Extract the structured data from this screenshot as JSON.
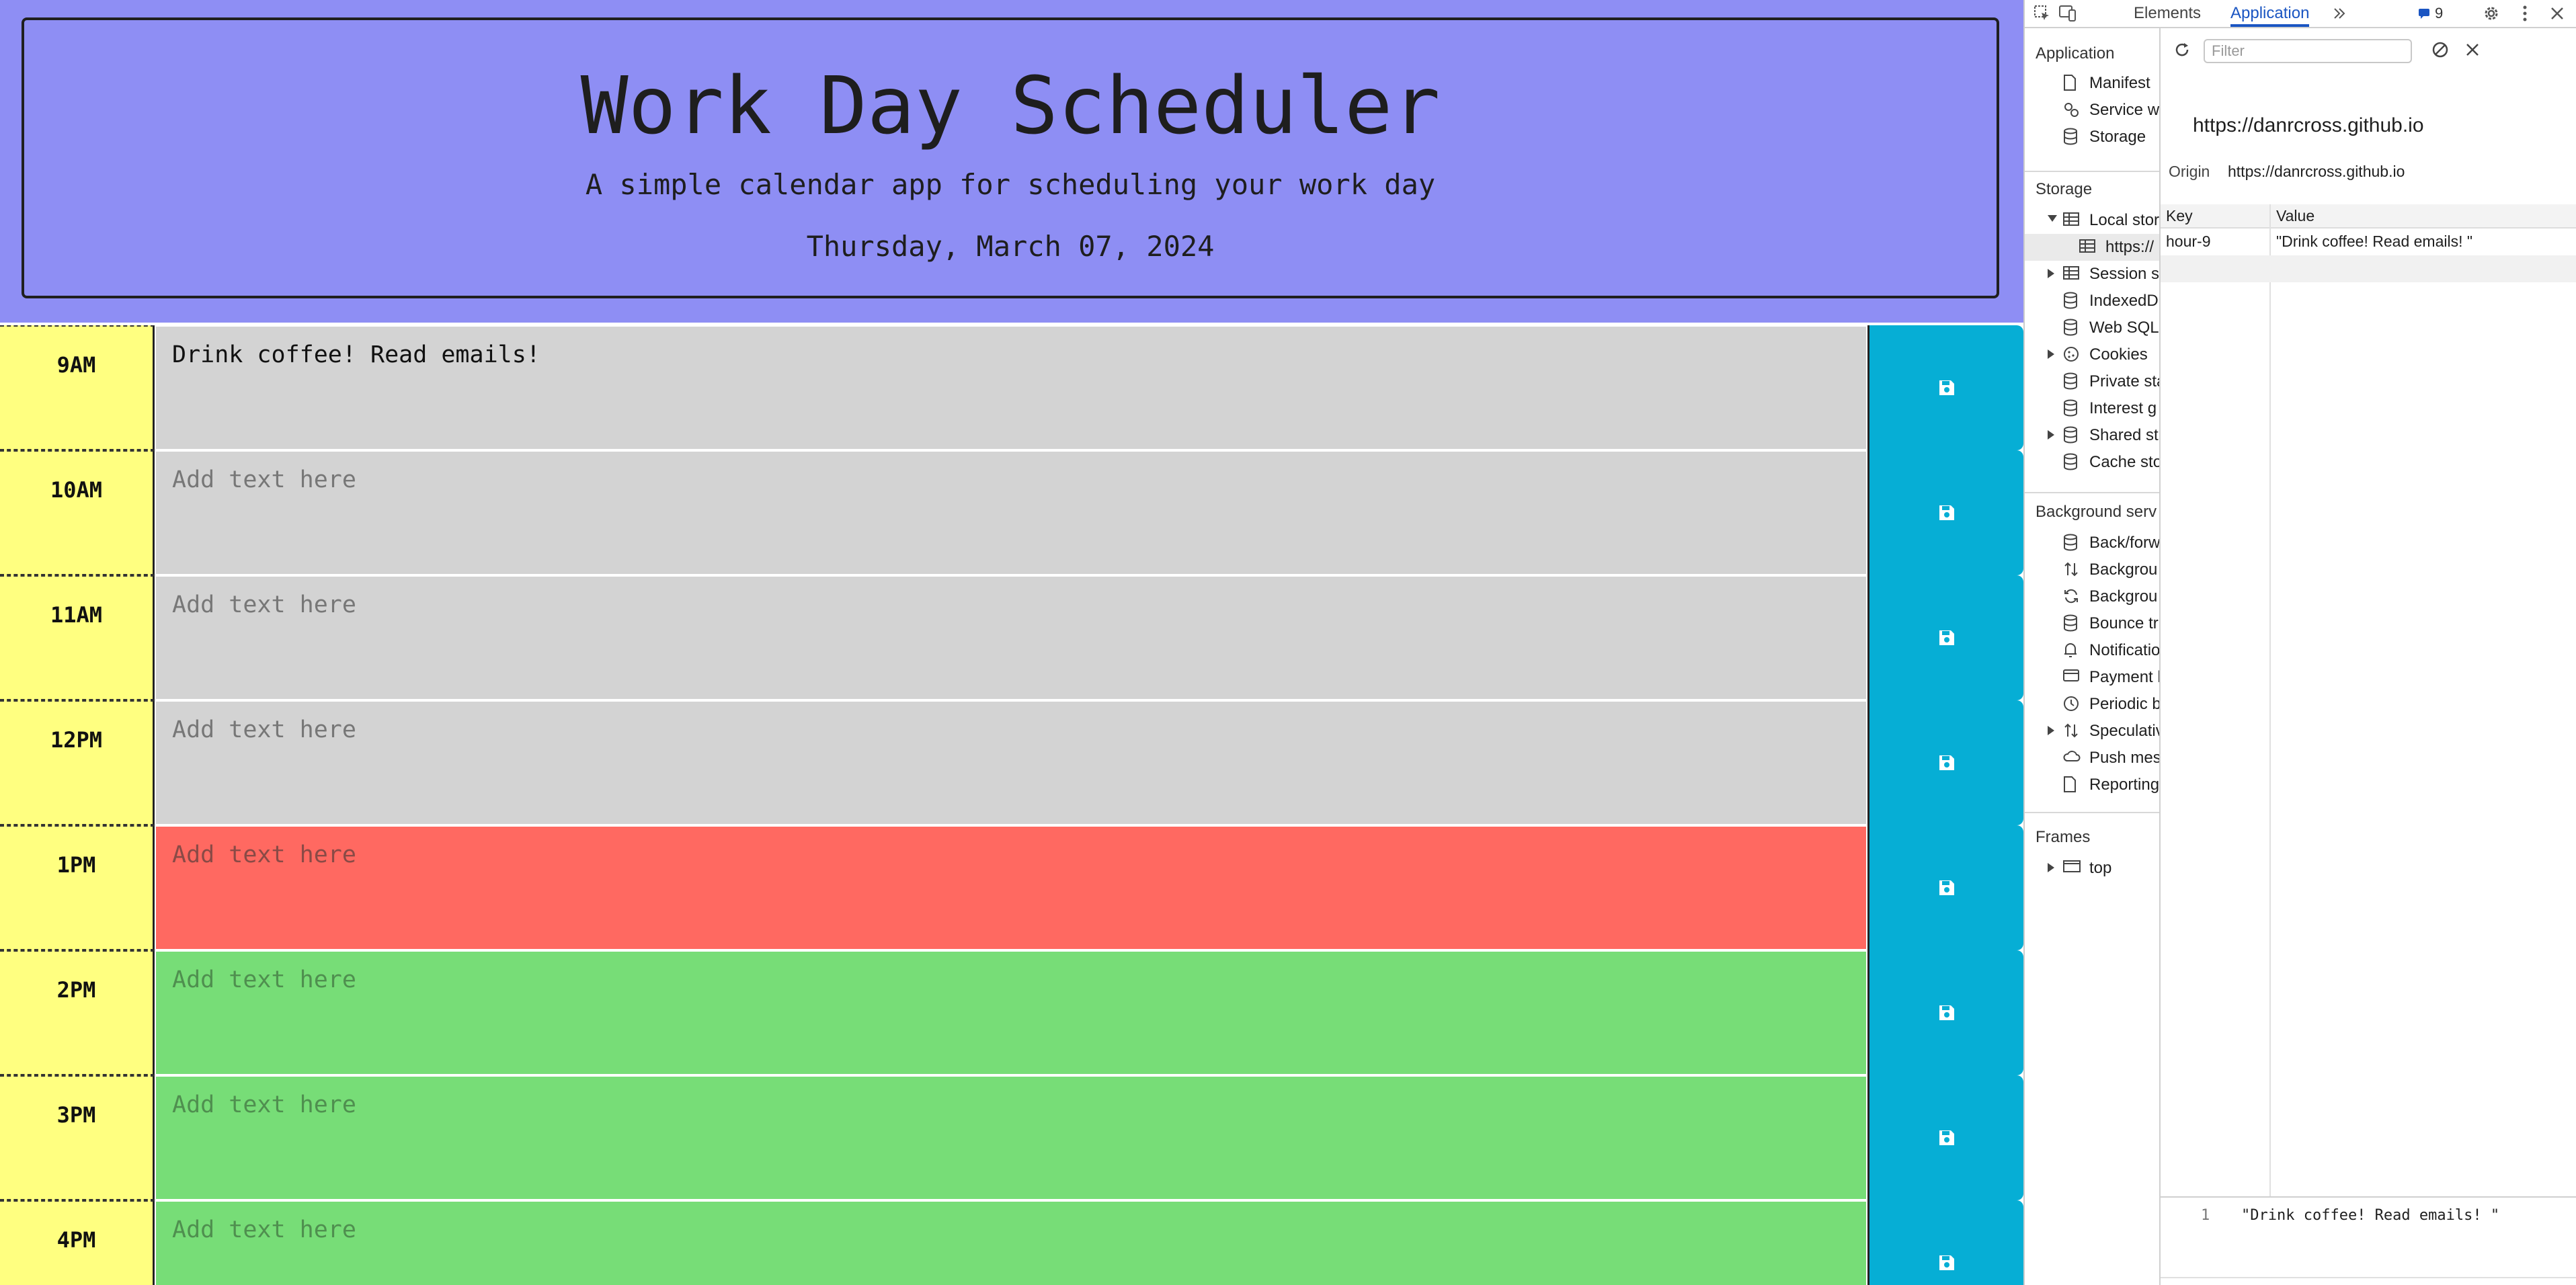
{
  "app": {
    "title": "Work Day Scheduler",
    "subtitle": "A simple calendar app for scheduling your work day",
    "date": "Thursday, March 07, 2024",
    "placeholder": "Add text here",
    "rows": [
      {
        "hour": "9AM",
        "text": "Drink coffee! Read emails!",
        "state": "past"
      },
      {
        "hour": "10AM",
        "text": "",
        "state": "past"
      },
      {
        "hour": "11AM",
        "text": "",
        "state": "past"
      },
      {
        "hour": "12PM",
        "text": "",
        "state": "past"
      },
      {
        "hour": "1PM",
        "text": "",
        "state": "present"
      },
      {
        "hour": "2PM",
        "text": "",
        "state": "future"
      },
      {
        "hour": "3PM",
        "text": "",
        "state": "future"
      },
      {
        "hour": "4PM",
        "text": "",
        "state": "future"
      }
    ],
    "colors": {
      "past": "#d3d3d3",
      "present": "#ff6961",
      "future": "#77dd77",
      "hour": "#ffff80",
      "save": "#06aed5",
      "header": "#8e8ef4"
    },
    "save_icon": "floppy-disk-icon"
  },
  "devtools": {
    "tabs": {
      "elements": "Elements",
      "application": "Application"
    },
    "more_tabs_icon": "chevron-double-right-icon",
    "issues_count": "9",
    "filter_placeholder": "Filter",
    "sidebar": {
      "application": {
        "title": "Application",
        "items": [
          "Manifest",
          "Service w",
          "Storage"
        ]
      },
      "storage": {
        "title": "Storage",
        "local_storage": "Local stor",
        "local_storage_child": "https://",
        "items": [
          "Session s",
          "IndexedD",
          "Web SQL",
          "Cookies",
          "Private sta",
          "Interest g",
          "Shared st",
          "Cache sto"
        ]
      },
      "background": {
        "title": "Background serv",
        "items": [
          "Back/forw",
          "Backgrou",
          "Backgrou",
          "Bounce tr",
          "Notificatio",
          "Payment h",
          "Periodic b",
          "Speculativ",
          "Push mes",
          "Reporting"
        ]
      },
      "frames": {
        "title": "Frames",
        "items": [
          "top"
        ]
      }
    },
    "main": {
      "origin_title": "https://danrcross.github.io",
      "origin_label": "Origin",
      "origin_value": "https://danrcross.github.io",
      "columns": {
        "key": "Key",
        "value": "Value"
      },
      "rows": [
        {
          "key": "hour-9",
          "value": "\"Drink coffee! Read emails! \""
        }
      ],
      "preview_line": "1",
      "preview_value": "\"Drink coffee! Read emails! \""
    }
  }
}
